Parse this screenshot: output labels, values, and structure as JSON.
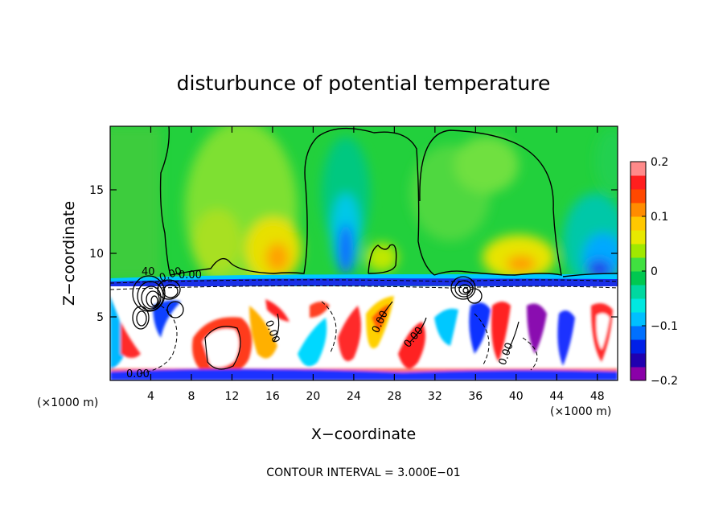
{
  "chart_data": {
    "type": "heatmap",
    "title": "disturbunce of potential temperature",
    "xlabel": "X−coordinate",
    "ylabel": "Z−coordinate",
    "x_unit": "(×1000 m)",
    "y_unit": "(×1000 m)",
    "xlim": [
      0,
      50
    ],
    "ylim": [
      0,
      20
    ],
    "x_ticks": [
      4,
      8,
      12,
      16,
      20,
      24,
      28,
      32,
      36,
      40,
      44,
      48
    ],
    "y_ticks": [
      5,
      10,
      15
    ],
    "colorbar": {
      "range": [
        -0.2,
        0.2
      ],
      "tick_values": [
        0.2,
        0.1,
        0,
        -0.1,
        -0.2
      ],
      "tick_labels": [
        "0.2",
        "0.1",
        "0",
        "−0.1",
        "−0.2"
      ],
      "colors": [
        "#8a00a8",
        "#2000b0",
        "#0020e8",
        "#0070ff",
        "#00c0ff",
        "#00e8e0",
        "#00d8a0",
        "#00c850",
        "#40e040",
        "#a0e800",
        "#e8e800",
        "#ffc800",
        "#ff8c00",
        "#ff4800",
        "#ff1e1e",
        "#ff8a8a"
      ]
    },
    "contour_labels": [
      "0.00",
      "0.00",
      "0.00",
      "0.00",
      "0.00",
      "0.00",
      "0.00",
      "40"
    ],
    "contour_interval_text": "CONTOUR INTERVAL = 3.000E−01"
  }
}
